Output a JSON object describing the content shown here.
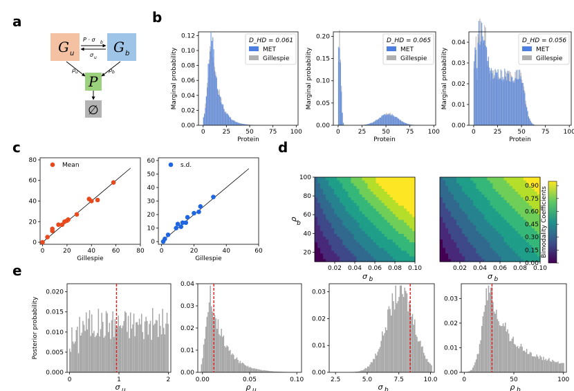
{
  "panels": {
    "a": {
      "letter": "a",
      "nodes": {
        "gu": "G",
        "gu_sub": "u",
        "gb": "G",
        "gb_sub": "b",
        "p": "P",
        "null": "∅"
      },
      "edges": {
        "top": "P · σ",
        "top_sub": "b",
        "bottom": "σ",
        "bottom_sub": "u",
        "rho_u": "ρ",
        "rho_u_sub": "u",
        "rho_b": "ρ",
        "rho_b_sub": "b"
      },
      "colors": {
        "gu": "#f4c2a2",
        "gb": "#9ec4e8",
        "p": "#9bd17d",
        "null": "#b3b3b3"
      }
    },
    "b": {
      "letter": "b",
      "subplots": [
        {
          "dhd": "D_HD = 0.061",
          "ylim": [
            0,
            0.12
          ],
          "yticks": [
            "0.00",
            "0.02",
            "0.04",
            "0.06",
            "0.08",
            "0.10",
            "0.12"
          ],
          "ylabel": "Marginal probability",
          "xlabel": "Protein"
        },
        {
          "dhd": "D_HD = 0.065",
          "ylim": [
            0,
            0.2
          ],
          "yticks": [
            "0.00",
            "0.05",
            "0.10",
            "0.15",
            "0.20"
          ],
          "ylabel": "Marginal probability",
          "xlabel": "Protein"
        },
        {
          "dhd": "D_HD = 0.056",
          "ylim": [
            0,
            0.04
          ],
          "yticks": [
            "0.00",
            "0.01",
            "0.02",
            "0.03",
            "0.04"
          ],
          "ylabel": "Marginal probability",
          "xlabel": "Protein"
        }
      ],
      "xticks": [
        "0",
        "25",
        "50",
        "75",
        "100"
      ],
      "legend": [
        "MET",
        "Gillespie"
      ]
    },
    "c": {
      "letter": "c",
      "left": {
        "legend": "Mean",
        "xticks": [
          "0",
          "20",
          "40",
          "60",
          "80"
        ],
        "yticks": [
          "0",
          "20",
          "40",
          "60",
          "80"
        ],
        "xlabel": "Gillespie"
      },
      "right": {
        "legend": "s.d.",
        "xticks": [
          "0",
          "20",
          "40",
          "60"
        ],
        "yticks": [
          "0",
          "10",
          "20",
          "30",
          "40",
          "50",
          "60"
        ],
        "xlabel": "Gillespie"
      }
    },
    "d": {
      "letter": "d",
      "ylabel": "ρ",
      "ylabel_sub": "b",
      "xlabel": "σ",
      "xlabel_sub": "b",
      "yticks": [
        "20",
        "40",
        "60",
        "80",
        "100"
      ],
      "xticks": [
        "0.02",
        "0.04",
        "0.06",
        "0.08",
        "0.10"
      ],
      "colorbar_label": "Bimodality Coefficients",
      "colorbar_ticks": [
        "0.00",
        "0.15",
        "0.30",
        "0.45",
        "0.60",
        "0.75",
        "0.90"
      ]
    },
    "e": {
      "letter": "e",
      "ylabel": "Posterior probability",
      "subplots": [
        {
          "xlabel": "σ",
          "sub": "u",
          "xticks": [
            "0",
            "1",
            "2"
          ],
          "yticks": [
            "0.000",
            "0.005",
            "0.010",
            "0.015",
            "0.020"
          ]
        },
        {
          "xlabel": "ρ",
          "sub": "u",
          "xticks": [
            "0.00",
            "0.05",
            "0.10"
          ],
          "yticks": [
            "0.00",
            "0.01",
            "0.02",
            "0.03",
            "0.04"
          ]
        },
        {
          "xlabel": "σ",
          "sub": "b",
          "xticks": [
            "2.5",
            "5.0",
            "7.5",
            "10.0"
          ],
          "yticks": [
            "0.00",
            "0.01",
            "0.02",
            "0.03"
          ]
        },
        {
          "xlabel": "ρ",
          "sub": "b",
          "xticks": [
            "0",
            "50",
            "100"
          ],
          "yticks": [
            "0.00",
            "0.01",
            "0.02",
            "0.03"
          ]
        }
      ]
    }
  },
  "chart_data": [
    {
      "type": "bar",
      "panel": "b1",
      "xlabel": "Protein",
      "ylabel": "Marginal probability",
      "xlim": [
        -5,
        102
      ],
      "ylim": [
        0,
        0.125
      ],
      "series": [
        {
          "name": "MET",
          "color": "#4c7fe0"
        },
        {
          "name": "Gillespie",
          "color": "#b0b0b0"
        }
      ],
      "shape": {
        "kind": "gamma",
        "mode": 9,
        "peak": 0.12,
        "width": 4,
        "tail": 8
      }
    },
    {
      "type": "bar",
      "panel": "b2",
      "xlabel": "Protein",
      "ylabel": "Marginal probability",
      "xlim": [
        -5,
        102
      ],
      "ylim": [
        0,
        0.21
      ],
      "series": [
        {
          "name": "MET",
          "color": "#4c7fe0"
        },
        {
          "name": "Gillespie",
          "color": "#b0b0b0"
        }
      ],
      "shape": {
        "kind": "bimodal",
        "peaks": [
          [
            1,
            0.2,
            1.5
          ],
          [
            52,
            0.025,
            10
          ]
        ]
      }
    },
    {
      "type": "bar",
      "panel": "b3",
      "xlabel": "Protein",
      "ylabel": "Marginal probability",
      "xlim": [
        -5,
        102
      ],
      "ylim": [
        0,
        0.045
      ],
      "series": [
        {
          "name": "MET",
          "color": "#4c7fe0"
        },
        {
          "name": "Gillespie",
          "color": "#b0b0b0"
        }
      ],
      "shape": {
        "kind": "broad",
        "peaks": [
          [
            7,
            0.04,
            4
          ],
          [
            30,
            0.024,
            14
          ]
        ]
      }
    },
    {
      "type": "scatter",
      "panel": "c-mean",
      "xlabel": "Gillespie",
      "xlim": [
        -2,
        80
      ],
      "ylim": [
        -2,
        82
      ],
      "color": "#e8491d",
      "points": [
        [
          0,
          0
        ],
        [
          4,
          5
        ],
        [
          8,
          11
        ],
        [
          8,
          13
        ],
        [
          13,
          17
        ],
        [
          16,
          17
        ],
        [
          18,
          20
        ],
        [
          20,
          21
        ],
        [
          21,
          22
        ],
        [
          28,
          27
        ],
        [
          38,
          42
        ],
        [
          40,
          40
        ],
        [
          45,
          41
        ],
        [
          58,
          58
        ]
      ]
    },
    {
      "type": "scatter",
      "panel": "c-sd",
      "xlabel": "Gillespie",
      "xlim": [
        -2,
        60
      ],
      "ylim": [
        -2,
        62
      ],
      "color": "#1f66e0",
      "points": [
        [
          1,
          0
        ],
        [
          2,
          2
        ],
        [
          4,
          5
        ],
        [
          9,
          10
        ],
        [
          10,
          13
        ],
        [
          12,
          11
        ],
        [
          13,
          14
        ],
        [
          15,
          14
        ],
        [
          16,
          18
        ],
        [
          20,
          21
        ],
        [
          23,
          22
        ],
        [
          24,
          26
        ],
        [
          32,
          33
        ]
      ]
    },
    {
      "type": "heatmap",
      "panel": "d",
      "xlim": [
        0.0,
        0.1
      ],
      "ylim": [
        10,
        100
      ],
      "colorbar": [
        0.0,
        0.95
      ]
    },
    {
      "type": "bar",
      "panel": "e1",
      "xlim": [
        -0.05,
        2.05
      ],
      "ylim": [
        0,
        0.022
      ],
      "ref": 0.95,
      "shape": {
        "kind": "uniform",
        "level": 0.012,
        "noise": 0.004
      }
    },
    {
      "type": "bar",
      "panel": "e2",
      "xlim": [
        -0.005,
        0.105
      ],
      "ylim": [
        0,
        0.04
      ],
      "ref": 0.012,
      "shape": {
        "kind": "decay",
        "peak": 0.035,
        "mode": 0.012
      }
    },
    {
      "type": "bar",
      "panel": "e3",
      "xlim": [
        2.0,
        10.3
      ],
      "ylim": [
        0,
        0.033
      ],
      "ref": 8.4,
      "shape": {
        "kind": "bump",
        "center": 7.7,
        "peak": 0.028,
        "width": 1.0
      }
    },
    {
      "type": "bar",
      "panel": "e4",
      "xlim": [
        -3,
        103
      ],
      "ylim": [
        0,
        0.036
      ],
      "ref": 28,
      "shape": {
        "kind": "skew",
        "center": 27,
        "peak": 0.032,
        "width": 6
      }
    }
  ]
}
